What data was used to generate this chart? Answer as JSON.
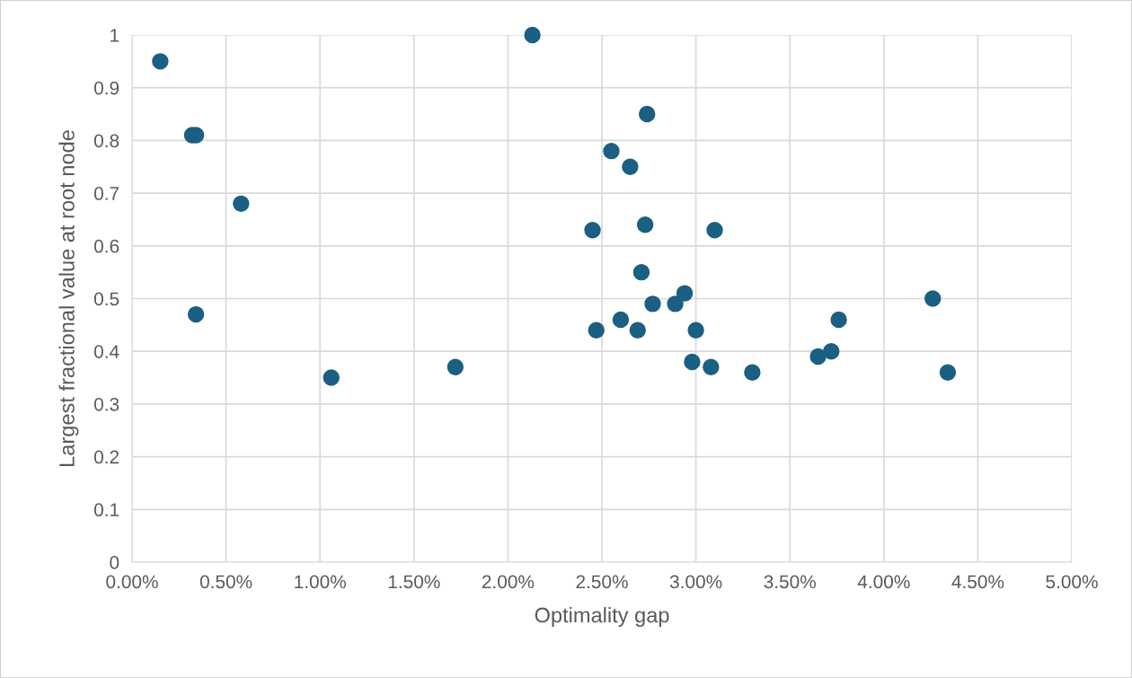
{
  "chart_data": {
    "type": "scatter",
    "xlabel": "Optimality gap",
    "ylabel": "Largest fractional value at root node",
    "x": [
      0.15,
      0.32,
      0.34,
      0.58,
      0.34,
      1.06,
      1.72,
      2.13,
      2.74,
      2.55,
      2.65,
      2.45,
      2.73,
      3.1,
      2.71,
      2.94,
      2.77,
      2.89,
      2.6,
      2.47,
      2.69,
      3.0,
      2.98,
      3.08,
      3.3,
      3.65,
      3.72,
      3.76,
      4.26,
      4.34
    ],
    "values": [
      0.95,
      0.81,
      0.81,
      0.68,
      0.47,
      0.35,
      0.37,
      1.0,
      0.85,
      0.78,
      0.75,
      0.63,
      0.64,
      0.63,
      0.55,
      0.51,
      0.49,
      0.49,
      0.46,
      0.44,
      0.44,
      0.44,
      0.38,
      0.37,
      0.36,
      0.39,
      0.4,
      0.46,
      0.5,
      0.36
    ],
    "color": "#1b5f82",
    "marker": "circle",
    "grid": true,
    "xlim": [
      0,
      5
    ],
    "xticks": [
      {
        "value": 0,
        "label": "0.00%"
      },
      {
        "value": 0.5,
        "label": "0.50%"
      },
      {
        "value": 1,
        "label": "1.00%"
      },
      {
        "value": 1.5,
        "label": "1.50%"
      },
      {
        "value": 2,
        "label": "2.00%"
      },
      {
        "value": 2.5,
        "label": "2.50%"
      },
      {
        "value": 3,
        "label": "3.00%"
      },
      {
        "value": 3.5,
        "label": "3.50%"
      },
      {
        "value": 4,
        "label": "4.00%"
      },
      {
        "value": 4.5,
        "label": "4.50%"
      },
      {
        "value": 5,
        "label": "5.00%"
      }
    ],
    "ylim": [
      0,
      1
    ],
    "yticks": [
      0,
      0.1,
      0.2,
      0.3,
      0.4,
      0.5,
      0.6,
      0.7,
      0.8,
      0.9,
      1
    ]
  }
}
